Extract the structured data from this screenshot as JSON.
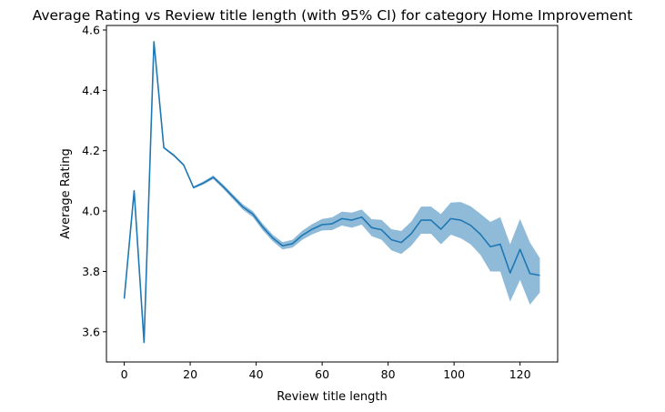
{
  "chart_data": {
    "type": "line",
    "title": "Average Rating vs Review title length (with 95% CI) for category Home Improvement",
    "xlabel": "Review title length",
    "ylabel": "Average Rating",
    "xlim": [
      -5.4,
      131.4
    ],
    "ylim": [
      3.5,
      4.615
    ],
    "xticks": [
      0,
      20,
      40,
      60,
      80,
      100,
      120
    ],
    "xtick_labels": [
      "0",
      "20",
      "40",
      "60",
      "80",
      "100",
      "120"
    ],
    "yticks": [
      3.6,
      3.8,
      4.0,
      4.2,
      4.4,
      4.6
    ],
    "ytick_labels": [
      "3.6",
      "3.8",
      "4.0",
      "4.2",
      "4.4",
      "4.6"
    ],
    "grid": false,
    "colors": {
      "line": "#1f77b4",
      "ci": "#1f77b4",
      "ci_opacity": 0.5
    },
    "series": [
      {
        "x": [
          0,
          3,
          6,
          9,
          12,
          15,
          18,
          21,
          24,
          27,
          30,
          33,
          36,
          39,
          42,
          45,
          48,
          51,
          54,
          57,
          60,
          63,
          66,
          69,
          72,
          75,
          78,
          81,
          84,
          87,
          90,
          93,
          96,
          99,
          102,
          105,
          108,
          111,
          114,
          117,
          120,
          123,
          126
        ],
        "y": [
          3.71,
          4.067,
          3.565,
          4.561,
          4.21,
          4.185,
          4.153,
          4.078,
          4.093,
          4.112,
          4.081,
          4.047,
          4.013,
          3.99,
          3.947,
          3.911,
          3.885,
          3.892,
          3.92,
          3.94,
          3.955,
          3.958,
          3.975,
          3.97,
          3.98,
          3.945,
          3.938,
          3.905,
          3.896,
          3.925,
          3.97,
          3.97,
          3.94,
          3.975,
          3.97,
          3.953,
          3.923,
          3.882,
          3.89,
          3.795,
          3.873,
          3.793,
          3.787
        ],
        "ci_low": [
          3.7,
          4.06,
          3.56,
          4.555,
          4.207,
          4.181,
          4.149,
          4.074,
          4.088,
          4.106,
          4.074,
          4.039,
          4.004,
          3.98,
          3.936,
          3.9,
          3.873,
          3.879,
          3.905,
          3.923,
          3.936,
          3.937,
          3.952,
          3.945,
          3.955,
          3.917,
          3.905,
          3.87,
          3.858,
          3.885,
          3.925,
          3.925,
          3.89,
          3.922,
          3.91,
          3.89,
          3.855,
          3.8,
          3.8,
          3.7,
          3.772,
          3.69,
          3.73
        ],
        "ci_high": [
          3.72,
          4.074,
          3.57,
          4.567,
          4.213,
          4.189,
          4.157,
          4.082,
          4.098,
          4.118,
          4.088,
          4.055,
          4.022,
          4.0,
          3.958,
          3.922,
          3.897,
          3.905,
          3.935,
          3.957,
          3.974,
          3.979,
          3.998,
          3.995,
          4.005,
          3.973,
          3.971,
          3.94,
          3.934,
          3.965,
          4.015,
          4.015,
          3.99,
          4.028,
          4.03,
          4.016,
          3.991,
          3.964,
          3.98,
          3.89,
          3.974,
          3.896,
          3.844
        ]
      }
    ]
  }
}
